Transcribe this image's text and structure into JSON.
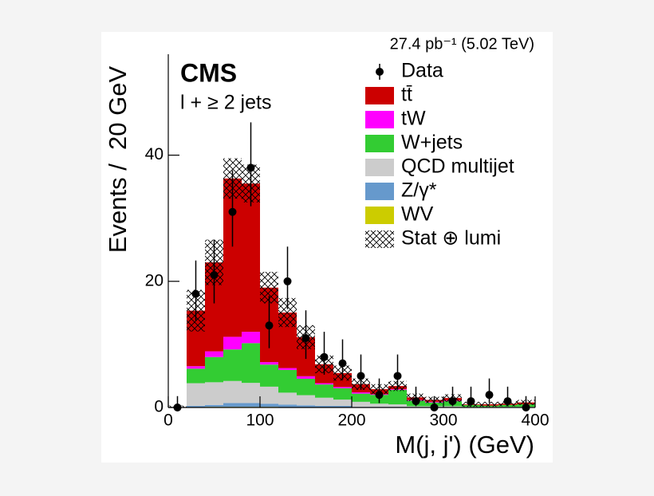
{
  "chart_data": {
    "type": "stacked_histogram",
    "title": "27.4 pb⁻¹ (5.02 TeV)",
    "experiment_label": "CMS",
    "selection_label": "l + ≥ 2 jets",
    "x_label": "M(j, j') (GeV)",
    "y_label": "Events /  20 GeV",
    "bins": [
      0,
      20,
      40,
      60,
      80,
      100,
      120,
      140,
      160,
      180,
      200,
      220,
      240,
      260,
      280,
      300,
      320,
      340,
      360,
      380,
      400
    ],
    "xlim": [
      0,
      400
    ],
    "xticks": [
      0,
      100,
      200,
      300,
      400
    ],
    "ylim": [
      0,
      56
    ],
    "yticks": [
      0,
      20,
      40
    ],
    "legend": "upper right",
    "data": {
      "name": "Data",
      "color": "#000000",
      "values": [
        0,
        18,
        21,
        31,
        38,
        13,
        20,
        11,
        8,
        7,
        5,
        2,
        5,
        1,
        0,
        1,
        1,
        2,
        1,
        0
      ],
      "yerr_low": [
        0,
        4.2,
        4.5,
        5.5,
        6.1,
        3.6,
        4.4,
        3.3,
        2.8,
        2.6,
        2.2,
        1.3,
        2.2,
        0.8,
        0,
        0.8,
        0.8,
        1.3,
        0.8,
        0
      ],
      "yerr_high": [
        1.8,
        5.3,
        5.6,
        6.6,
        7.2,
        4.7,
        5.5,
        4.4,
        4.0,
        3.8,
        3.4,
        2.6,
        3.4,
        2.3,
        1.8,
        2.3,
        2.3,
        2.6,
        2.3,
        1.8
      ]
    },
    "series": [
      {
        "name": "tt̄",
        "color": "#cc0000",
        "values": [
          0,
          8.8,
          14.1,
          25.1,
          23.5,
          11.8,
          8.8,
          6.2,
          3.0,
          2.2,
          1.3,
          0.8,
          0.5,
          0.4,
          0.3,
          0.4,
          0.1,
          0.2,
          0.2,
          0.3
        ]
      },
      {
        "name": "tW",
        "color": "#ff00ff",
        "values": [
          0,
          0.4,
          0.9,
          2.0,
          1.8,
          0.4,
          0.3,
          0.4,
          0.2,
          0.2,
          0.2,
          0.1,
          0.1,
          0.1,
          0.1,
          0.1,
          0,
          0,
          0,
          0
        ]
      },
      {
        "name": "W+jets",
        "color": "#33cc33",
        "values": [
          0,
          2.3,
          4.0,
          5.0,
          6.3,
          3.5,
          3.6,
          2.6,
          2.1,
          1.8,
          1.3,
          1.4,
          2.3,
          0.9,
          0.6,
          0.8,
          0.3,
          0.2,
          0.3,
          0.4
        ]
      },
      {
        "name": "QCD multijet",
        "color": "#cccccc",
        "values": [
          0,
          3.6,
          3.6,
          3.5,
          3.2,
          2.7,
          1.9,
          1.6,
          1.3,
          1.0,
          0.8,
          0.5,
          0.4,
          0.2,
          0.2,
          0.2,
          0.1,
          0.1,
          0.1,
          0.1
        ]
      },
      {
        "name": "Z/γ*",
        "color": "#6699cc",
        "values": [
          0,
          0.2,
          0.3,
          0.6,
          0.6,
          0.5,
          0.4,
          0.3,
          0.2,
          0.2,
          0.1,
          0.1,
          0.1,
          0,
          0,
          0,
          0,
          0,
          0,
          0
        ]
      },
      {
        "name": "WV",
        "color": "#cccc00",
        "values": [
          0,
          0.05,
          0.1,
          0.1,
          0.1,
          0.1,
          0.05,
          0.05,
          0.05,
          0.05,
          0,
          0,
          0,
          0,
          0,
          0,
          0,
          0,
          0,
          0
        ]
      }
    ],
    "uncertainty": {
      "name": "Stat ⊕ lumi",
      "values": [
        0.3,
        3.3,
        3.6,
        3.2,
        3.0,
        2.5,
        2.3,
        1.9,
        1.4,
        1.2,
        0.9,
        0.8,
        0.8,
        0.6,
        0.5,
        0.6,
        0.4,
        0.4,
        0.4,
        0.4
      ]
    }
  }
}
